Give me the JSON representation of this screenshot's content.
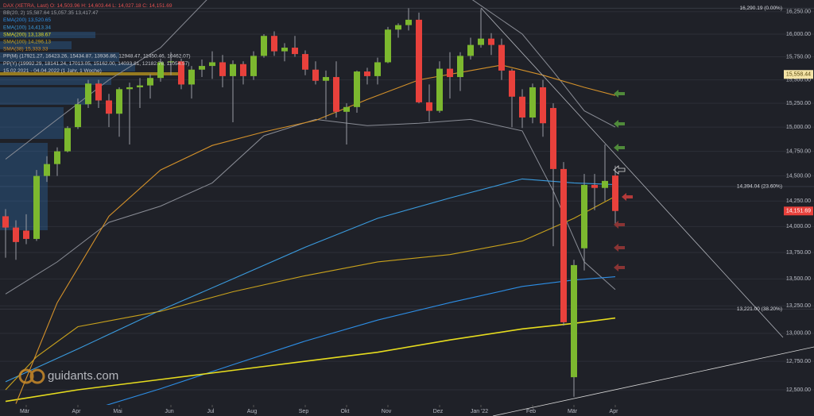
{
  "chart_data": {
    "type": "candlestick",
    "title": "DAX (XETRA, Last)",
    "title_values": "O: 14,503.96  H: 14,603.44  L: 14,027.18  C: 14,151.69",
    "log_scale": true,
    "grid": true,
    "up_color": "#7cb82f",
    "down_color": "#e8413c",
    "ylim": [
      12370,
      16383
    ],
    "yticks": [
      {
        "value": 12500,
        "label": "12,500.00"
      },
      {
        "value": 12750,
        "label": "12,750.00"
      },
      {
        "value": 13000,
        "label": "13,000.00"
      },
      {
        "value": 13250,
        "label": "13,250.00"
      },
      {
        "value": 13500,
        "label": "13,500.00"
      },
      {
        "value": 13750,
        "label": "13,750.00"
      },
      {
        "value": 14000,
        "label": "14,000.00"
      },
      {
        "value": 14250,
        "label": "14,250.00"
      },
      {
        "value": 14500,
        "label": "14,500.00"
      },
      {
        "value": 14750,
        "label": "14,750.00"
      },
      {
        "value": 15000,
        "label": "15,000.00"
      },
      {
        "value": 15250,
        "label": "15,250.00"
      },
      {
        "value": 15500,
        "label": "15,500.00"
      },
      {
        "value": 15750,
        "label": "15,750.00"
      },
      {
        "value": 16000,
        "label": "16,000.00"
      },
      {
        "value": 16250,
        "label": "16,250.00"
      }
    ],
    "xticks": [
      {
        "value": 2,
        "label": "Mär"
      },
      {
        "value": 7,
        "label": "Apr"
      },
      {
        "value": 11,
        "label": "Mai"
      },
      {
        "value": 16,
        "label": "Jun"
      },
      {
        "value": 20,
        "label": "Jul"
      },
      {
        "value": 24,
        "label": "Aug"
      },
      {
        "value": 29,
        "label": "Sep"
      },
      {
        "value": 33,
        "label": "Okt"
      },
      {
        "value": 37,
        "label": "Nov"
      },
      {
        "value": 42,
        "label": "Dez"
      },
      {
        "value": 46,
        "label": "Jan '22"
      },
      {
        "value": 51,
        "label": "Feb"
      },
      {
        "value": 55,
        "label": "Mär"
      },
      {
        "value": 59,
        "label": "Apr"
      }
    ],
    "open": [
      14100,
      13990,
      13960,
      13880,
      14500,
      14620,
      14750,
      15000,
      15240,
      15460,
      15280,
      15140,
      15400,
      15420,
      15440,
      15520,
      15690,
      15700,
      15450,
      15610,
      15650,
      15690,
      15540,
      15670,
      15540,
      15760,
      15980,
      15810,
      15850,
      15780,
      15610,
      15490,
      15530,
      15160,
      15210,
      15590,
      15540,
      15690,
      16050,
      16100,
      16160,
      15260,
      15170,
      15620,
      15530,
      15760,
      15880,
      15950,
      15880,
      15600,
      15320,
      15100,
      15420,
      15200,
      14570,
      12610,
      13790,
      14410,
      14380,
      14503.96
    ],
    "high": [
      14170,
      14060,
      14120,
      14560,
      14700,
      14790,
      15010,
      15300,
      15500,
      15500,
      15350,
      15420,
      15470,
      15520,
      15560,
      15730,
      15800,
      15730,
      15650,
      15720,
      15810,
      15770,
      15710,
      15700,
      15810,
      16000,
      16030,
      15900,
      15980,
      15820,
      15700,
      15600,
      15700,
      15250,
      15600,
      15630,
      15740,
      16080,
      16120,
      16290,
      16240,
      15450,
      15700,
      15800,
      15800,
      15960,
      16280,
      16010,
      15950,
      15620,
      15400,
      15460,
      15500,
      15250,
      14640,
      13680,
      14520,
      14520,
      14820,
      14603.44
    ],
    "low": [
      13700,
      13680,
      13830,
      13860,
      14440,
      14500,
      14740,
      14980,
      15200,
      15200,
      15000,
      14900,
      14820,
      15200,
      15300,
      15480,
      15550,
      15400,
      15300,
      15530,
      15510,
      15420,
      15050,
      15450,
      15500,
      15740,
      15760,
      15700,
      15750,
      15550,
      15450,
      15080,
      15100,
      14820,
      15150,
      15450,
      15450,
      15680,
      15960,
      16040,
      15250,
      15060,
      15150,
      15300,
      15380,
      15720,
      15850,
      15770,
      15500,
      15000,
      14990,
      15040,
      14900,
      13810,
      13070,
      12440,
      13580,
      14160,
      14250,
      14027.18
    ],
    "close": [
      13990,
      13850,
      13880,
      14500,
      14620,
      14750,
      14990,
      15240,
      15460,
      15280,
      15140,
      15400,
      15420,
      15440,
      15520,
      15690,
      15700,
      15450,
      15610,
      15650,
      15690,
      15540,
      15670,
      15540,
      15760,
      15980,
      15810,
      15850,
      15780,
      15610,
      15490,
      15530,
      15160,
      15210,
      15590,
      15540,
      15690,
      16050,
      16100,
      16160,
      15260,
      15170,
      15620,
      15530,
      15760,
      15880,
      15950,
      15880,
      15600,
      15320,
      15100,
      15420,
      15040,
      14570,
      13100,
      13630,
      14410,
      14380,
      14450,
      14151.69
    ],
    "bands": {
      "name": "BB(20, 2)",
      "legend_value": "15,587.64  15,057.35  13,417.47",
      "color": "#8a8d96",
      "x": [
        0,
        5,
        10,
        15,
        20,
        25,
        30,
        35,
        40,
        45,
        50,
        53,
        56,
        59
      ],
      "upper": [
        14670,
        15080,
        15500,
        15850,
        16450,
        16600,
        16600,
        16500,
        16500,
        16400,
        16000,
        15590,
        15170,
        15000
      ],
      "lower": [
        13360,
        13660,
        14040,
        14200,
        14430,
        14910,
        15080,
        15015,
        15040,
        15080,
        14960,
        14350,
        13660,
        13400
      ]
    },
    "series": [
      {
        "name": "EMA(200)",
        "legend_value": "13,520.65",
        "color": "#2d8ee6",
        "x": [
          8,
          15,
          22,
          29,
          36,
          43,
          50,
          55,
          59
        ],
        "values": [
          12320,
          12510,
          12720,
          12930,
          13120,
          13280,
          13430,
          13490,
          13520.65
        ]
      },
      {
        "name": "EMA(100)",
        "legend_value": "14,413.34",
        "color": "#3a9bde",
        "x": [
          0,
          7,
          15,
          22,
          29,
          36,
          43,
          50,
          55,
          59
        ],
        "values": [
          12570,
          12860,
          13210,
          13500,
          13800,
          14080,
          14280,
          14470,
          14430,
          14413.34
        ]
      },
      {
        "name": "SMA(200)",
        "legend_value": "13,138.67",
        "color": "#e6dc1e",
        "x": [
          0,
          7,
          15,
          22,
          29,
          36,
          43,
          50,
          55,
          59
        ],
        "values": [
          12400,
          12500,
          12590,
          12670,
          12750,
          12830,
          12940,
          13040,
          13090,
          13138.67
        ]
      },
      {
        "name": "SMA(100)",
        "legend_value": "14,296.13",
        "color": "#c9a21c",
        "x": [
          0,
          3,
          7,
          15,
          22,
          29,
          36,
          43,
          50,
          55,
          59
        ],
        "values": [
          12500,
          12790,
          13060,
          13200,
          13380,
          13530,
          13660,
          13730,
          13860,
          14080,
          14296.13
        ]
      },
      {
        "name": "SMA(38)",
        "legend_value": "15,333.33",
        "color": "#d4912a",
        "x": [
          1,
          5,
          10,
          15,
          20,
          25,
          30,
          35,
          40,
          45,
          48,
          52,
          56,
          59
        ],
        "values": [
          12380,
          13280,
          14100,
          14560,
          14810,
          14950,
          15070,
          15290,
          15500,
          15600,
          15660,
          15550,
          15420,
          15333.33
        ]
      }
    ],
    "annotations": [
      "PP(M) (17921.27, 16423.26, 15434.87, 13936.86, 12948.47, 11450.46, 10462.07)",
      "PP(Y) (19992.29, 18141.24, 17013.05, 15162.00, 14033.81, 12182.76, 11054.57)",
      "15.02.2021 - 04.04.2022 (1 Jahr, 1 Woche)"
    ],
    "levels": [
      {
        "value": 16290.19,
        "label": "16,290.19 (0.00%)"
      },
      {
        "value": 14394.04,
        "label": "14,394.04 (23.60%)"
      },
      {
        "value": 13221.0,
        "label": "13,221.00 (38.20%)"
      }
    ],
    "price_markers": [
      {
        "value": 15558.44,
        "label": "15,558.44",
        "color": "#f3e3a6",
        "text_color": "#5a4a10"
      },
      {
        "value": 14151.69,
        "label": "14,151.69",
        "color": "#e8413c",
        "text_color": "#ffffff"
      }
    ],
    "watermark": "guidants.com"
  }
}
